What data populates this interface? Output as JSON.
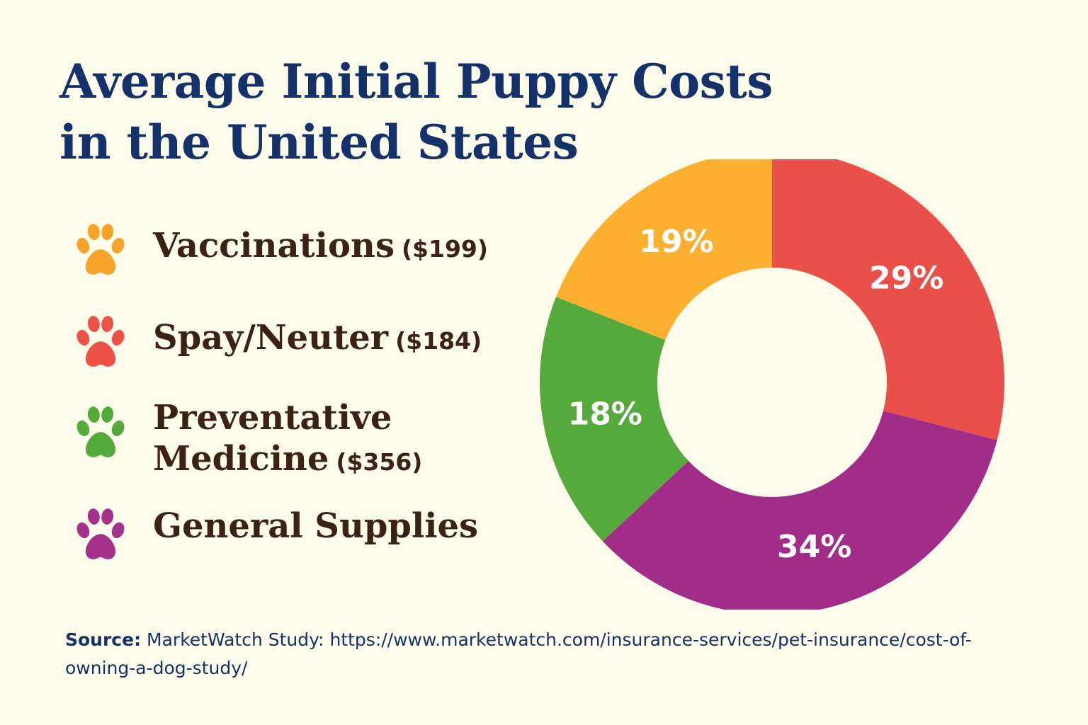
{
  "title": {
    "line1": "Average Initial Puppy Costs",
    "line2": "in the United States"
  },
  "legend": [
    {
      "label": "Vaccinations",
      "amount": "($199)",
      "color": "#f6a32a",
      "icon": "paw-icon"
    },
    {
      "label": "Spay/Neuter",
      "amount": "($184)",
      "color": "#ec5248",
      "icon": "paw-icon"
    },
    {
      "label_line1": "Preventative",
      "label_line2": "Medicine",
      "amount": "($356)",
      "color": "#54ab3b",
      "icon": "paw-icon"
    },
    {
      "label": "General Supplies",
      "color": "#a4328a",
      "icon": "paw-icon"
    }
  ],
  "chart_data": {
    "type": "pie",
    "donut": true,
    "slices": [
      {
        "label": "29%",
        "value": 29,
        "color": "#e9504a"
      },
      {
        "label": "34%",
        "value": 34,
        "color": "#a22d88"
      },
      {
        "label": "18%",
        "value": 18,
        "color": "#56aa3c"
      },
      {
        "label": "19%",
        "value": 19,
        "color": "#fbb12f"
      }
    ]
  },
  "source": {
    "key": "Source:",
    "text": " MarketWatch Study: https://www.marketwatch.com/insurance-services/pet-insurance/cost-of-owning-a-dog-study/"
  }
}
